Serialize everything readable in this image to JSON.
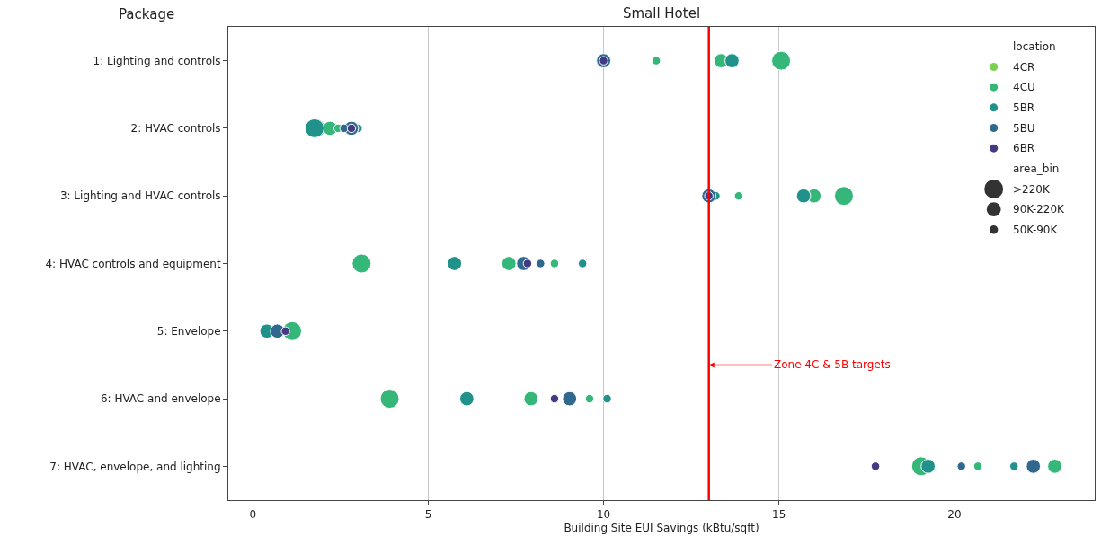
{
  "chart_data": {
    "type": "bubble",
    "title": "Small Hotel",
    "xlabel": "Building Site EUI Savings (kBtu/sqft)",
    "ylabel": "Package",
    "orientation": "horizontal",
    "legend_title": "location",
    "categories": [
      "1: Lighting and controls",
      "2: HVAC controls",
      "3: Lighting and HVAC controls",
      "4: HVAC controls and equipment",
      "5: Envelope",
      "6: HVAC and envelope",
      "7: HVAC, envelope, and lighting"
    ],
    "series": [
      {
        "name": "4CR",
        "color": "#7ad151",
        "values": [
          null,
          null,
          null,
          null,
          null,
          null,
          null
        ]
      },
      {
        "name": "4CU",
        "color": "#35b779",
        "values": [
          15.06,
          1.8,
          16.85,
          3.1,
          1.12,
          3.9,
          19.05
        ],
        "sizes": [
          1,
          1,
          1,
          1,
          1,
          1,
          1
        ]
      },
      {
        "color": "#35b779",
        "values": [
          13.35,
          2.2,
          16.0,
          7.3,
          null,
          7.93,
          22.86
        ],
        "sizes": [
          0.56,
          0.56,
          0.56,
          0.56,
          null,
          0.56,
          0.56
        ]
      },
      {
        "color": "#35b779",
        "values": [
          11.5,
          2.43,
          13.85,
          8.6,
          null,
          9.6,
          20.67
        ],
        "sizes": [
          0.2,
          0.2,
          0.2,
          0.2,
          null,
          0.2,
          0.2
        ]
      },
      {
        "name": "5BR",
        "color": "#21918c",
        "values": [
          null,
          1.76,
          null,
          null,
          null,
          null,
          null
        ],
        "sizes": [
          null,
          1,
          null,
          null,
          null,
          null,
          null
        ]
      },
      {
        "color": "#21918c",
        "values": [
          13.66,
          null,
          15.7,
          5.75,
          0.4,
          6.1,
          19.25
        ],
        "sizes": [
          0.56,
          null,
          0.56,
          0.56,
          0.56,
          0.56,
          0.56
        ]
      },
      {
        "color": "#21918c",
        "values": [
          null,
          3.0,
          13.2,
          9.4,
          null,
          10.1,
          21.7
        ],
        "sizes": [
          null,
          0.2,
          0.2,
          0.2,
          null,
          0.2,
          0.2
        ]
      },
      {
        "name": "5BU",
        "color": "#31688e",
        "values": [
          10.0,
          2.81,
          13.0,
          7.72,
          0.7,
          9.03,
          22.25
        ],
        "sizes": [
          0.56,
          0.56,
          0.56,
          0.56,
          0.56,
          0.56,
          0.56
        ]
      },
      {
        "color": "#31688e",
        "values": [
          null,
          2.6,
          null,
          8.2,
          null,
          null,
          20.2
        ],
        "sizes": [
          null,
          0.2,
          null,
          0.2,
          null,
          null,
          0.2
        ]
      },
      {
        "name": "6BR",
        "color": "#443983",
        "values": [
          10.0,
          2.81,
          13.0,
          7.83,
          0.93,
          8.6,
          17.75
        ],
        "sizes": [
          0.2,
          0.2,
          0.2,
          0.2,
          0.2,
          0.2,
          0.2
        ]
      }
    ],
    "size_legend": [
      {
        "value": 1,
        "label": ">220K"
      },
      {
        "value": 0.56,
        "label": "90K-220K"
      },
      {
        "value": 0.2,
        "label": "50K-90K"
      }
    ],
    "annotations": [
      "area_bin"
    ],
    "ref_lines": [
      {
        "axis": "x",
        "value": 13,
        "label": "Zone 4C & 5B targets",
        "color": "#ff0000"
      }
    ],
    "xlim": [
      -0.7,
      24
    ],
    "xticks": [
      0,
      5,
      10,
      15,
      20
    ],
    "grid": "x",
    "legend": "top right"
  }
}
